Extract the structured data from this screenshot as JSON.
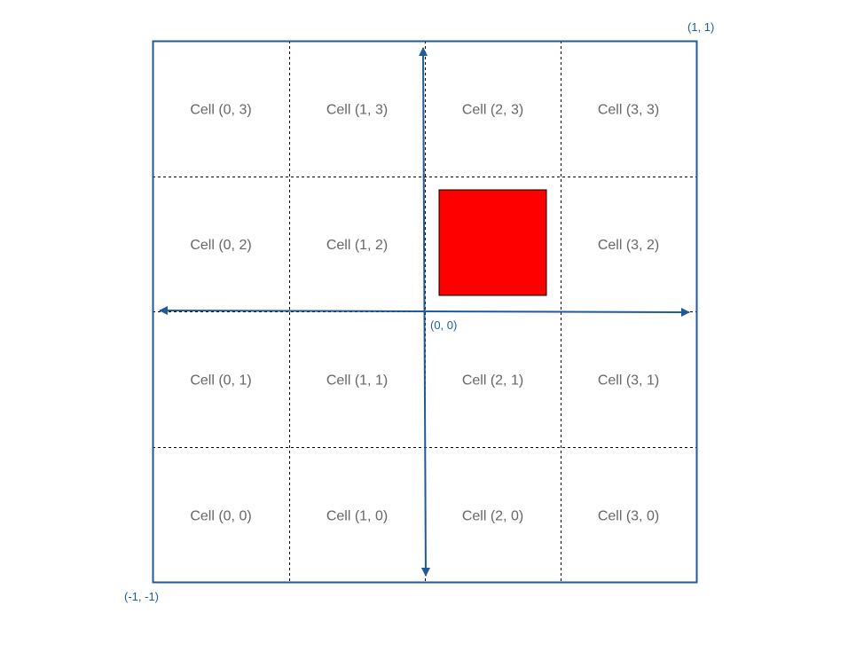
{
  "colors": {
    "axis": "#1f5a99",
    "grid": "#000000",
    "square": "#ff0000",
    "cell_text": "#666666"
  },
  "corner_labels": {
    "top_right": "(1, 1)",
    "bottom_left": "(-1, -1)",
    "origin": "(0, 0)"
  },
  "cells": [
    [
      "Cell (0, 3)",
      "Cell (1, 3)",
      "Cell (2, 3)",
      "Cell (3, 3)"
    ],
    [
      "Cell (0, 2)",
      "Cell (1, 2)",
      "",
      "Cell (3, 2)"
    ],
    [
      "Cell (0, 1)",
      "Cell (1, 1)",
      "Cell (2, 1)",
      "Cell (3, 1)"
    ],
    [
      "Cell (0, 0)",
      "Cell (1, 0)",
      "Cell (2, 0)",
      "Cell (3, 0)"
    ]
  ],
  "highlighted_cell": [
    2,
    2
  ]
}
